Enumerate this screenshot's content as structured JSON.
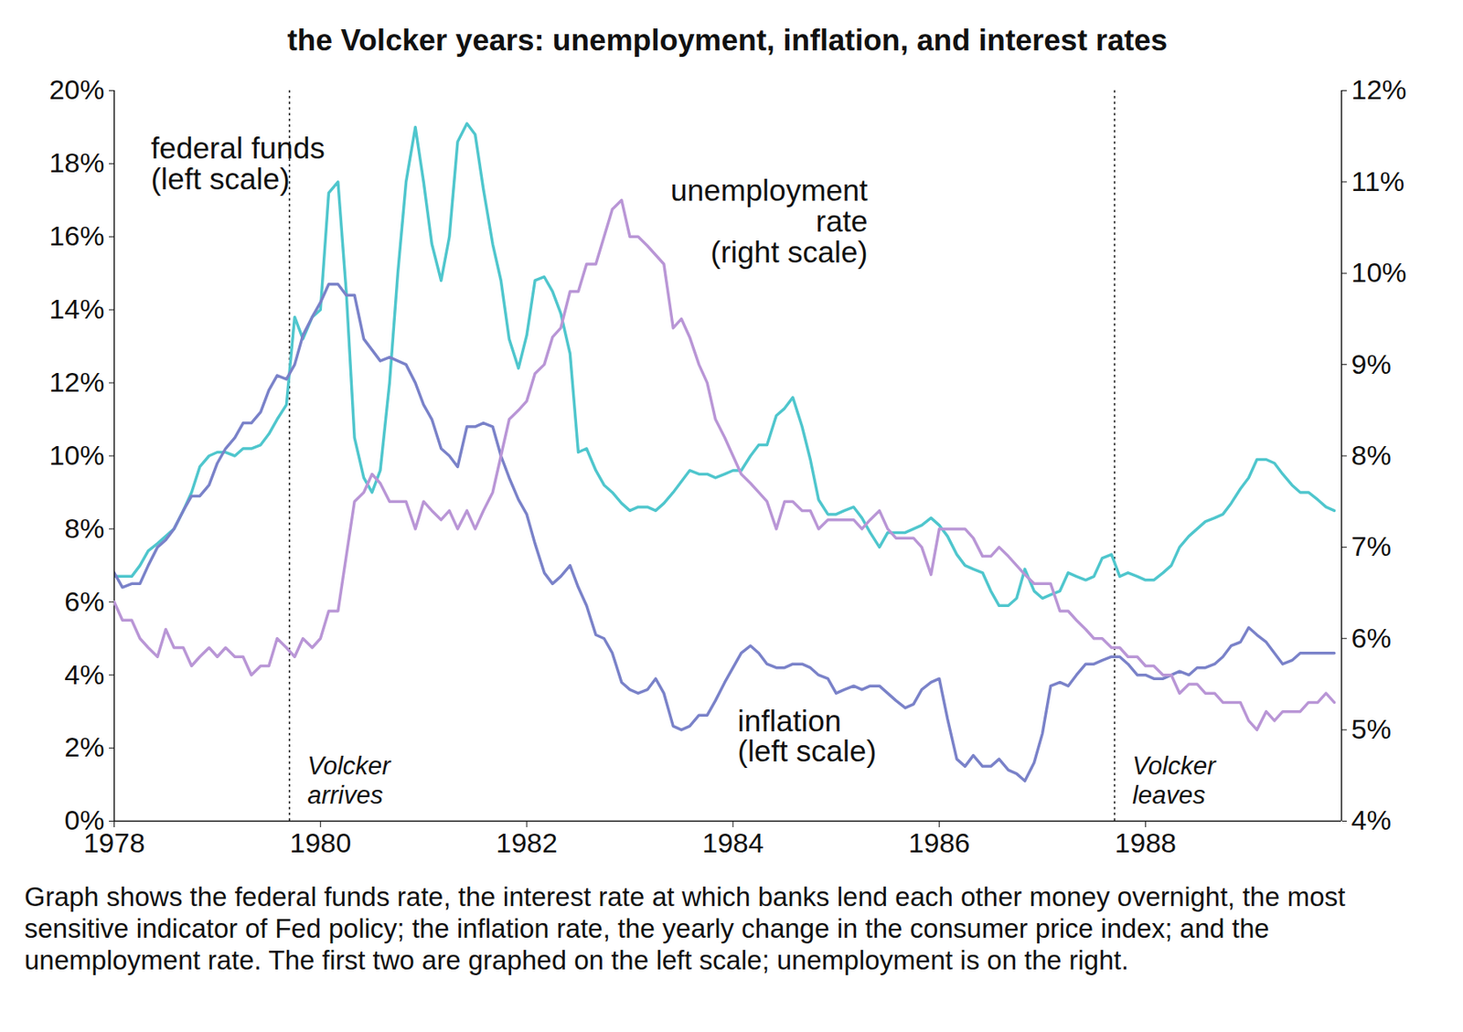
{
  "chart_data": {
    "type": "line",
    "title": "the Volcker years: unemployment, inflation, and interest rates",
    "caption": "Graph shows the federal funds rate, the interest rate at which banks lend each other money overnight, the most sensitive indicator of Fed policy; the inflation rate, the yearly change in the consumer price index; and the unemployment rate. The first two are graphed on the left scale; unemployment is on the right.",
    "x": [
      1978,
      1978.08,
      1978.17,
      1978.25,
      1978.33,
      1978.42,
      1978.5,
      1978.58,
      1978.67,
      1978.75,
      1978.83,
      1978.92,
      1979,
      1979.08,
      1979.17,
      1979.25,
      1979.33,
      1979.42,
      1979.5,
      1979.58,
      1979.67,
      1979.75,
      1979.83,
      1979.92,
      1980,
      1980.08,
      1980.17,
      1980.25,
      1980.33,
      1980.42,
      1980.5,
      1980.58,
      1980.67,
      1980.75,
      1980.83,
      1980.92,
      1981,
      1981.08,
      1981.17,
      1981.25,
      1981.33,
      1981.42,
      1981.5,
      1981.58,
      1981.67,
      1981.75,
      1981.83,
      1981.92,
      1982,
      1982.08,
      1982.17,
      1982.25,
      1982.33,
      1982.42,
      1982.5,
      1982.58,
      1982.67,
      1982.75,
      1982.83,
      1982.92,
      1983,
      1983.08,
      1983.17,
      1983.25,
      1983.33,
      1983.42,
      1983.5,
      1983.58,
      1983.67,
      1983.75,
      1983.83,
      1983.92,
      1984,
      1984.08,
      1984.17,
      1984.25,
      1984.33,
      1984.42,
      1984.5,
      1984.58,
      1984.67,
      1984.75,
      1984.83,
      1984.92,
      1985,
      1985.08,
      1985.17,
      1985.25,
      1985.33,
      1985.42,
      1985.5,
      1985.58,
      1985.67,
      1985.75,
      1985.83,
      1985.92,
      1986,
      1986.08,
      1986.17,
      1986.25,
      1986.33,
      1986.42,
      1986.5,
      1986.58,
      1986.67,
      1986.75,
      1986.83,
      1986.92,
      1987,
      1987.08,
      1987.17,
      1987.25,
      1987.33,
      1987.42,
      1987.5,
      1987.58,
      1987.67,
      1987.75,
      1987.83,
      1987.92,
      1988,
      1988.08,
      1988.17,
      1988.25,
      1988.33,
      1988.42,
      1988.5,
      1988.58,
      1988.67,
      1988.75,
      1988.83,
      1988.92,
      1989,
      1989.08,
      1989.17,
      1989.25,
      1989.33,
      1989.42,
      1989.5,
      1989.58,
      1989.67,
      1989.75,
      1989.83
    ],
    "xlim": [
      1978,
      1989.9
    ],
    "xticks": [
      1978,
      1980,
      1982,
      1984,
      1986,
      1988
    ],
    "ylim": [
      0,
      20
    ],
    "yticks": [
      {
        "value": 0,
        "label": "0%"
      },
      {
        "value": 2,
        "label": "2%"
      },
      {
        "value": 4,
        "label": "4%"
      },
      {
        "value": 6,
        "label": "6%"
      },
      {
        "value": 8,
        "label": "8%"
      },
      {
        "value": 10,
        "label": "10%"
      },
      {
        "value": 12,
        "label": "12%"
      },
      {
        "value": 14,
        "label": "14%"
      },
      {
        "value": 16,
        "label": "16%"
      },
      {
        "value": 18,
        "label": "18%"
      },
      {
        "value": 20,
        "label": "20%"
      }
    ],
    "y2lim": [
      4,
      12
    ],
    "y2ticks": [
      {
        "value": 4,
        "label": "4%"
      },
      {
        "value": 5,
        "label": "5%"
      },
      {
        "value": 6,
        "label": "6%"
      },
      {
        "value": 7,
        "label": "7%"
      },
      {
        "value": 8,
        "label": "8%"
      },
      {
        "value": 9,
        "label": "9%"
      },
      {
        "value": 10,
        "label": "10%"
      },
      {
        "value": 11,
        "label": "11%"
      },
      {
        "value": 12,
        "label": "12%"
      }
    ],
    "grid": false,
    "series": [
      {
        "name": "federal funds\n(left scale)",
        "color": "#4fc6cd",
        "values": [
          6.7,
          6.7,
          6.7,
          7.0,
          7.4,
          7.6,
          7.8,
          8.0,
          8.5,
          9.0,
          9.7,
          10.0,
          10.1,
          10.1,
          10.0,
          10.2,
          10.2,
          10.3,
          10.6,
          11.0,
          11.4,
          13.8,
          13.2,
          13.8,
          14.0,
          17.2,
          17.5,
          14.5,
          10.5,
          9.4,
          9.0,
          9.6,
          12.0,
          15.0,
          17.5,
          19.0,
          17.5,
          15.8,
          14.8,
          16.0,
          18.6,
          19.1,
          18.8,
          17.3,
          15.8,
          14.8,
          13.2,
          12.4,
          13.3,
          14.8,
          14.9,
          14.5,
          13.9,
          12.8,
          10.1,
          10.2,
          9.6,
          9.2,
          9.0,
          8.7,
          8.5,
          8.6,
          8.6,
          8.5,
          8.7,
          9.0,
          9.3,
          9.6,
          9.5,
          9.5,
          9.4,
          9.5,
          9.6,
          9.6,
          10.0,
          10.3,
          10.3,
          11.1,
          11.3,
          11.6,
          10.8,
          9.9,
          8.8,
          8.4,
          8.4,
          8.5,
          8.6,
          8.3,
          7.9,
          7.5,
          7.9,
          7.9,
          7.9,
          8.0,
          8.1,
          8.3,
          8.1,
          7.8,
          7.3,
          7.0,
          6.9,
          6.8,
          6.3,
          5.9,
          5.9,
          6.1,
          6.9,
          6.3,
          6.1,
          6.2,
          6.3,
          6.8,
          6.7,
          6.6,
          6.7,
          7.2,
          7.3,
          6.7,
          6.8,
          6.7,
          6.6,
          6.6,
          6.8,
          7.0,
          7.5,
          7.8,
          8.0,
          8.2,
          8.3,
          8.4,
          8.7,
          9.1,
          9.4,
          9.9,
          9.9,
          9.8,
          9.5,
          9.2,
          9.0,
          9.0,
          8.8,
          8.6,
          8.5
        ]
      },
      {
        "name": "unemployment\nrate\n(right scale)",
        "color": "#b996d6",
        "axis": "y2",
        "values": [
          6.4,
          6.2,
          6.2,
          6.0,
          5.9,
          5.8,
          6.1,
          5.9,
          5.9,
          5.7,
          5.8,
          5.9,
          5.8,
          5.9,
          5.8,
          5.8,
          5.6,
          5.7,
          5.7,
          6.0,
          5.9,
          5.8,
          6.0,
          5.9,
          6.0,
          6.3,
          6.3,
          6.9,
          7.5,
          7.6,
          7.8,
          7.7,
          7.5,
          7.5,
          7.5,
          7.2,
          7.5,
          7.4,
          7.3,
          7.4,
          7.2,
          7.4,
          7.2,
          7.4,
          7.6,
          8.0,
          8.4,
          8.5,
          8.6,
          8.9,
          9.0,
          9.3,
          9.4,
          9.8,
          9.8,
          10.1,
          10.1,
          10.4,
          10.7,
          10.8,
          10.4,
          10.4,
          10.3,
          10.2,
          10.1,
          9.4,
          9.5,
          9.3,
          9.0,
          8.8,
          8.4,
          8.2,
          8.0,
          7.8,
          7.7,
          7.6,
          7.5,
          7.2,
          7.5,
          7.5,
          7.4,
          7.4,
          7.2,
          7.3,
          7.3,
          7.3,
          7.3,
          7.2,
          7.3,
          7.4,
          7.2,
          7.1,
          7.1,
          7.1,
          7.0,
          6.7,
          7.2,
          7.2,
          7.2,
          7.2,
          7.1,
          6.9,
          6.9,
          7.0,
          6.9,
          6.8,
          6.7,
          6.6,
          6.6,
          6.6,
          6.3,
          6.3,
          6.2,
          6.1,
          6.0,
          6.0,
          5.9,
          5.9,
          5.8,
          5.8,
          5.7,
          5.7,
          5.6,
          5.6,
          5.4,
          5.5,
          5.5,
          5.4,
          5.4,
          5.3,
          5.3,
          5.3,
          5.1,
          5.0,
          5.2,
          5.1,
          5.2,
          5.2,
          5.2,
          5.3,
          5.3,
          5.4,
          5.3
        ]
      },
      {
        "name": "inflation\n(left scale)",
        "color": "#7a82c9",
        "values": [
          6.8,
          6.4,
          6.5,
          6.5,
          7.0,
          7.5,
          7.7,
          8.0,
          8.5,
          8.9,
          8.9,
          9.2,
          9.8,
          10.2,
          10.5,
          10.9,
          10.9,
          11.2,
          11.8,
          12.2,
          12.1,
          12.5,
          13.3,
          13.8,
          14.2,
          14.7,
          14.7,
          14.4,
          14.4,
          13.2,
          12.9,
          12.6,
          12.7,
          12.6,
          12.5,
          12.0,
          11.4,
          11.0,
          10.2,
          10.0,
          9.7,
          10.8,
          10.8,
          10.9,
          10.8,
          10.0,
          9.4,
          8.8,
          8.4,
          7.6,
          6.8,
          6.5,
          6.7,
          7.0,
          6.4,
          5.9,
          5.1,
          5.0,
          4.6,
          3.8,
          3.6,
          3.5,
          3.6,
          3.9,
          3.5,
          2.6,
          2.5,
          2.6,
          2.9,
          2.9,
          3.3,
          3.8,
          4.2,
          4.6,
          4.8,
          4.6,
          4.3,
          4.2,
          4.2,
          4.3,
          4.3,
          4.2,
          4.0,
          3.9,
          3.5,
          3.6,
          3.7,
          3.6,
          3.7,
          3.7,
          3.5,
          3.3,
          3.1,
          3.2,
          3.6,
          3.8,
          3.9,
          2.8,
          1.7,
          1.5,
          1.8,
          1.5,
          1.5,
          1.7,
          1.4,
          1.3,
          1.1,
          1.6,
          2.4,
          3.7,
          3.8,
          3.7,
          4.0,
          4.3,
          4.3,
          4.4,
          4.5,
          4.5,
          4.3,
          4.0,
          4.0,
          3.9,
          3.9,
          4.0,
          4.1,
          4.0,
          4.2,
          4.2,
          4.3,
          4.5,
          4.8,
          4.9,
          5.3,
          5.1,
          4.9,
          4.6,
          4.3,
          4.4,
          4.6,
          4.6,
          4.6,
          4.6,
          4.6
        ]
      }
    ],
    "annotations": [
      {
        "x": 1979.7,
        "text": "Volcker\narrives"
      },
      {
        "x": 1987.7,
        "text": "Volcker\nleaves"
      }
    ]
  }
}
